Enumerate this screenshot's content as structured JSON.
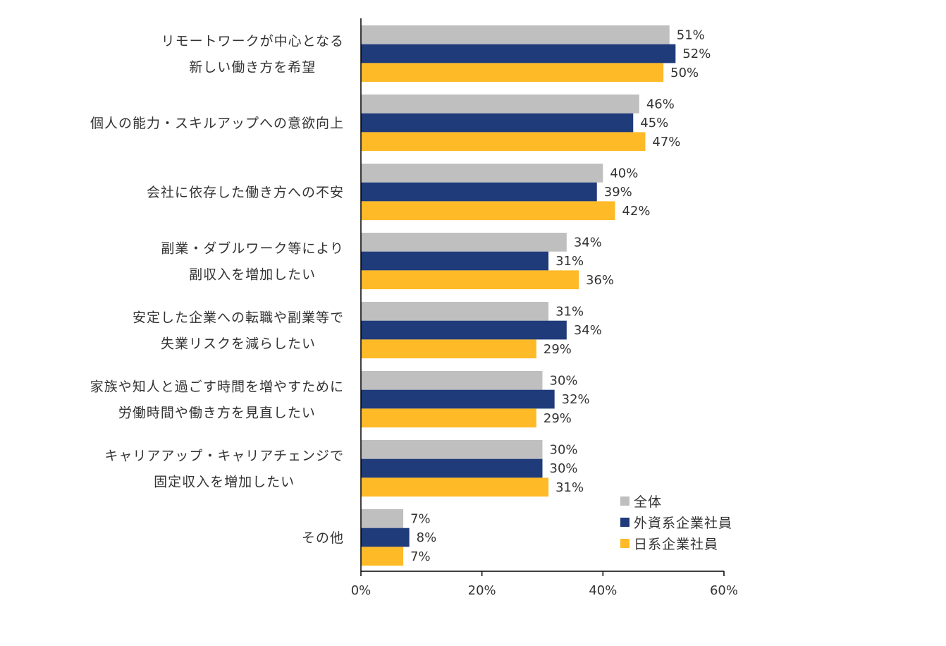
{
  "chart_data": {
    "type": "bar",
    "orientation": "horizontal",
    "categories": [
      [
        "リモートワークが中心となる",
        "新しい働き方を希望"
      ],
      [
        "個人の能力・スキルアップへの意欲向上"
      ],
      [
        "会社に依存した働き方への不安"
      ],
      [
        "副業・ダブルワーク等により",
        "副収入を増加したい"
      ],
      [
        "安定した企業への転職や副業等で",
        "失業リスクを減らしたい"
      ],
      [
        "家族や知人と過ごす時間を増やすために",
        "労働時間や働き方を見直したい"
      ],
      [
        "キャリアアップ・キャリアチェンジで",
        "固定収入を増加したい"
      ],
      [
        "その他"
      ]
    ],
    "series": [
      {
        "name": "全体",
        "color": "#bfbfbf",
        "values": [
          51,
          46,
          40,
          34,
          31,
          30,
          30,
          7
        ]
      },
      {
        "name": "外資系企業社員",
        "color": "#1f3b7a",
        "values": [
          52,
          45,
          39,
          31,
          34,
          32,
          30,
          8
        ]
      },
      {
        "name": "日系企業社員",
        "color": "#ffba27",
        "values": [
          50,
          47,
          42,
          36,
          29,
          29,
          31,
          7
        ]
      }
    ],
    "xlim": [
      0,
      60
    ],
    "xticks": [
      0,
      20,
      40,
      60
    ],
    "tick_suffix": "%",
    "value_suffix": "%",
    "legend_position": "bottom-right",
    "grid": false
  }
}
